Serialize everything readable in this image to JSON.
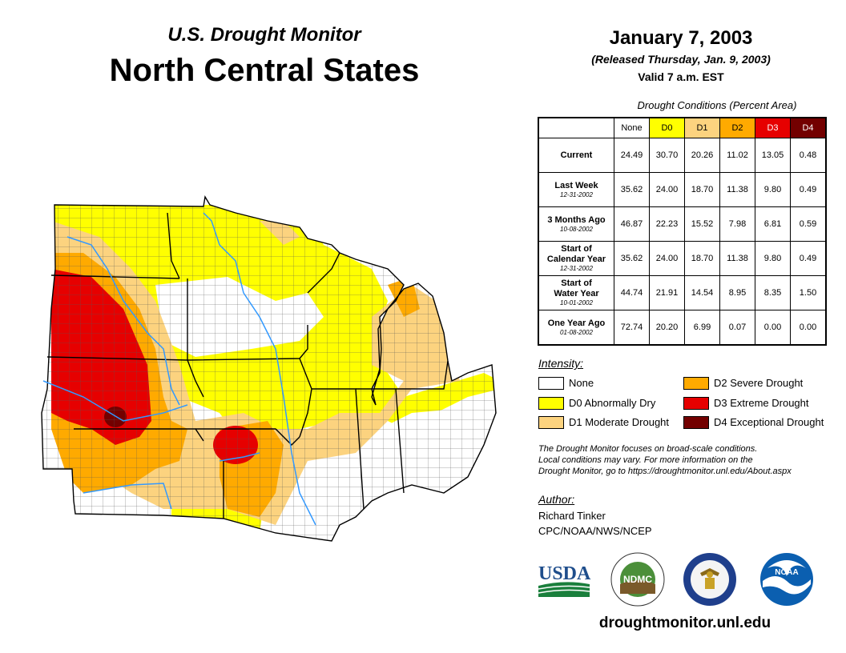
{
  "header": {
    "subtitle": "U.S. Drought Monitor",
    "title": "North Central States",
    "date": "January 7, 2003",
    "released": "(Released Thursday, Jan. 9, 2003)",
    "valid": "Valid 7 a.m. EST"
  },
  "table": {
    "caption": "Drought Conditions (Percent Area)",
    "columns": [
      "None",
      "D0",
      "D1",
      "D2",
      "D3",
      "D4"
    ],
    "rows": [
      {
        "label": "Current",
        "label2": "",
        "date": "",
        "values": [
          "24.49",
          "30.70",
          "20.26",
          "11.02",
          "13.05",
          "0.48"
        ]
      },
      {
        "label": "Last Week",
        "label2": "",
        "date": "12-31-2002",
        "values": [
          "35.62",
          "24.00",
          "18.70",
          "11.38",
          "9.80",
          "0.49"
        ]
      },
      {
        "label": "3 Months Ago",
        "label2": "",
        "date": "10-08-2002",
        "values": [
          "46.87",
          "22.23",
          "15.52",
          "7.98",
          "6.81",
          "0.59"
        ]
      },
      {
        "label": "Start of",
        "label2": "Calendar Year",
        "date": "12-31-2002",
        "values": [
          "35.62",
          "24.00",
          "18.70",
          "11.38",
          "9.80",
          "0.49"
        ]
      },
      {
        "label": "Start of",
        "label2": "Water Year",
        "date": "10-01-2002",
        "values": [
          "44.74",
          "21.91",
          "14.54",
          "8.95",
          "8.35",
          "1.50"
        ]
      },
      {
        "label": "One Year Ago",
        "label2": "",
        "date": "01-08-2002",
        "values": [
          "72.74",
          "20.20",
          "6.99",
          "0.07",
          "0.00",
          "0.00"
        ]
      }
    ]
  },
  "legend": {
    "title": "Intensity:",
    "items": [
      {
        "label": "None",
        "color": "#ffffff"
      },
      {
        "label": "D0 Abnormally Dry",
        "color": "#ffff00"
      },
      {
        "label": "D1 Moderate Drought",
        "color": "#fcd37f"
      },
      {
        "label": "D2 Severe Drought",
        "color": "#ffaa00"
      },
      {
        "label": "D3 Extreme Drought",
        "color": "#e60000"
      },
      {
        "label": "D4 Exceptional Drought",
        "color": "#730000"
      }
    ]
  },
  "note": {
    "line1": "The Drought Monitor focuses on broad-scale conditions.",
    "line2": "Local conditions may vary. For more information on the",
    "line3": "Drought Monitor, go to https://droughtmonitor.unl.edu/About.aspx"
  },
  "author": {
    "title": "Author:",
    "name": "Richard Tinker",
    "org": "CPC/NOAA/NWS/NCEP"
  },
  "logos": {
    "usda": "USDA",
    "ndmc": "NDMC",
    "noaa": "NOAA"
  },
  "footer": {
    "url": "droughtmonitor.unl.edu"
  }
}
